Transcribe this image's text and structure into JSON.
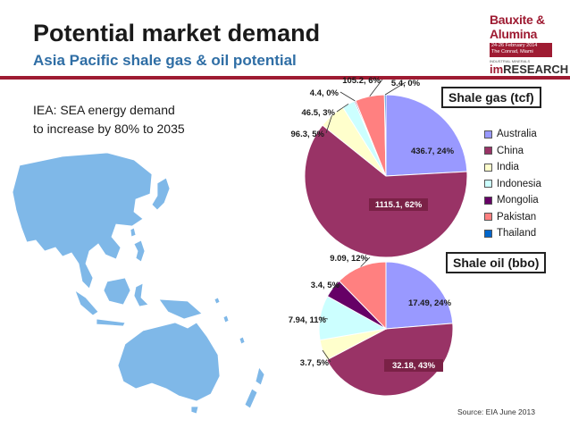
{
  "slide": {
    "title": "Potential market demand",
    "subtitle": "Asia Pacific shale gas & oil potential",
    "iea_line1": "IEA: SEA energy demand",
    "iea_line2": "to increase by 80% to 2035",
    "source": "Source: EIA June 2013"
  },
  "logo": {
    "line1": "Bauxite &",
    "line2": "Alumina",
    "band_line1": "24-26 February 2014",
    "band_line2": "The Conrad, Miami",
    "small_text": "INDUSTRIAL MINERALS",
    "research_prefix": "im",
    "research_word": "RESEARCH"
  },
  "colors": {
    "accent": "#9e1b32",
    "subtitle": "#2f6ea5",
    "map_land": "#7fb8e8"
  },
  "legend": [
    "Australia",
    "China",
    "India",
    "Indonesia",
    "Mongolia",
    "Pakistan",
    "Thailand"
  ],
  "chart_data": [
    {
      "type": "pie",
      "title": "Shale gas (tcf)",
      "categories": [
        "Australia",
        "China",
        "India",
        "Indonesia",
        "Mongolia",
        "Pakistan",
        "Thailand"
      ],
      "values": [
        436.7,
        1115.1,
        96.3,
        46.5,
        4.4,
        105.2,
        5.4
      ],
      "data_labels": [
        "436.7, 24%",
        "1115.1, 62%",
        "96.3, 5%",
        "46.5, 3%",
        "4.4, 0%",
        "105.2, 6%",
        "5.4, 0%"
      ],
      "colors": [
        "#9999ff",
        "#993366",
        "#ffffcc",
        "#ccffff",
        "#660066",
        "#ff8080",
        "#0066cc"
      ],
      "legend_position": "right"
    },
    {
      "type": "pie",
      "title": "Shale oil (bbo)",
      "categories": [
        "Australia",
        "China",
        "India",
        "Indonesia",
        "Mongolia",
        "Pakistan"
      ],
      "values": [
        17.49,
        32.18,
        3.7,
        7.94,
        3.4,
        9.09
      ],
      "data_labels": [
        "17.49, 24%",
        "32.18, 43%",
        "3.7, 5%",
        "7.94, 11%",
        "3.4, 5%",
        "9.09, 12%"
      ],
      "colors": [
        "#9999ff",
        "#993366",
        "#ffffcc",
        "#ccffff",
        "#660066",
        "#ff8080"
      ],
      "legend_position": "right"
    }
  ]
}
